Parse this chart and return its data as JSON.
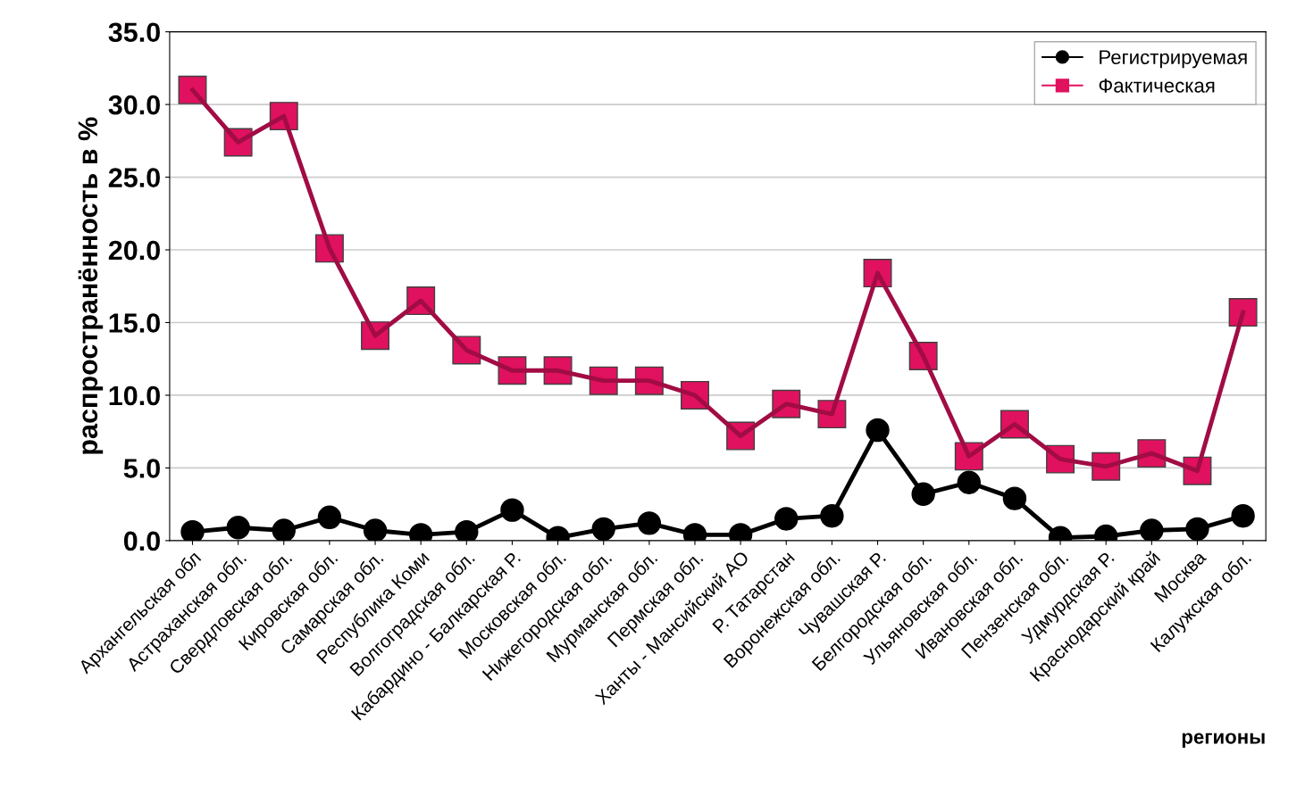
{
  "chart_data": {
    "type": "line",
    "xlabel": "регионы",
    "ylabel": "распространённость в %",
    "categories": [
      "Архангельская обл",
      "Астраханская обл.",
      "Свердловская обл.",
      "Кировская обл.",
      "Самарская обл.",
      "Республика Коми",
      "Волгоградская обл.",
      "Кабардино - Балкарская Р.",
      "Московская обл.",
      "Нижегородская обл.",
      "Мурманская обл.",
      "Пермская обл.",
      "Ханты - Мансийский АО",
      "Р. Татарстан",
      "Воронежская обл.",
      "Чувашская Р.",
      "Белгородская обл.",
      "Ульяновская обл.",
      "Ивановская обл.",
      "Пензенская обл.",
      "Удмурдская Р.",
      "Краснодарский край",
      "Москва",
      "Калужская обл."
    ],
    "series": [
      {
        "name": "Регистрируемая",
        "color": "#000000",
        "marker": "circle",
        "values": [
          0.6,
          0.9,
          0.7,
          1.6,
          0.7,
          0.4,
          0.6,
          2.1,
          0.2,
          0.8,
          1.2,
          0.4,
          0.4,
          1.5,
          1.7,
          7.6,
          3.2,
          4.0,
          2.9,
          0.2,
          0.3,
          0.7,
          0.8,
          1.7
        ]
      },
      {
        "name": "Фактическая",
        "color": "#e0115f",
        "marker": "square",
        "values": [
          31.0,
          27.4,
          29.2,
          20.1,
          14.1,
          16.5,
          13.1,
          11.7,
          11.7,
          11.0,
          11.0,
          10.0,
          7.2,
          9.4,
          8.7,
          18.4,
          12.7,
          5.8,
          8.0,
          5.6,
          5.1,
          6.0,
          4.8,
          15.7
        ]
      }
    ],
    "ylim": [
      0,
      35
    ],
    "yticks": [
      {
        "value": 0,
        "label": "0.0"
      },
      {
        "value": 5,
        "label": "5.0"
      },
      {
        "value": 10,
        "label": "10.0"
      },
      {
        "value": 15,
        "label": "15.0"
      },
      {
        "value": 20,
        "label": "20.0"
      },
      {
        "value": 25,
        "label": "25.0"
      },
      {
        "value": 30,
        "label": "30.0"
      },
      {
        "value": 35,
        "label": "35.0"
      }
    ],
    "grid": "y",
    "legend": "top right",
    "line_style": "solid"
  }
}
